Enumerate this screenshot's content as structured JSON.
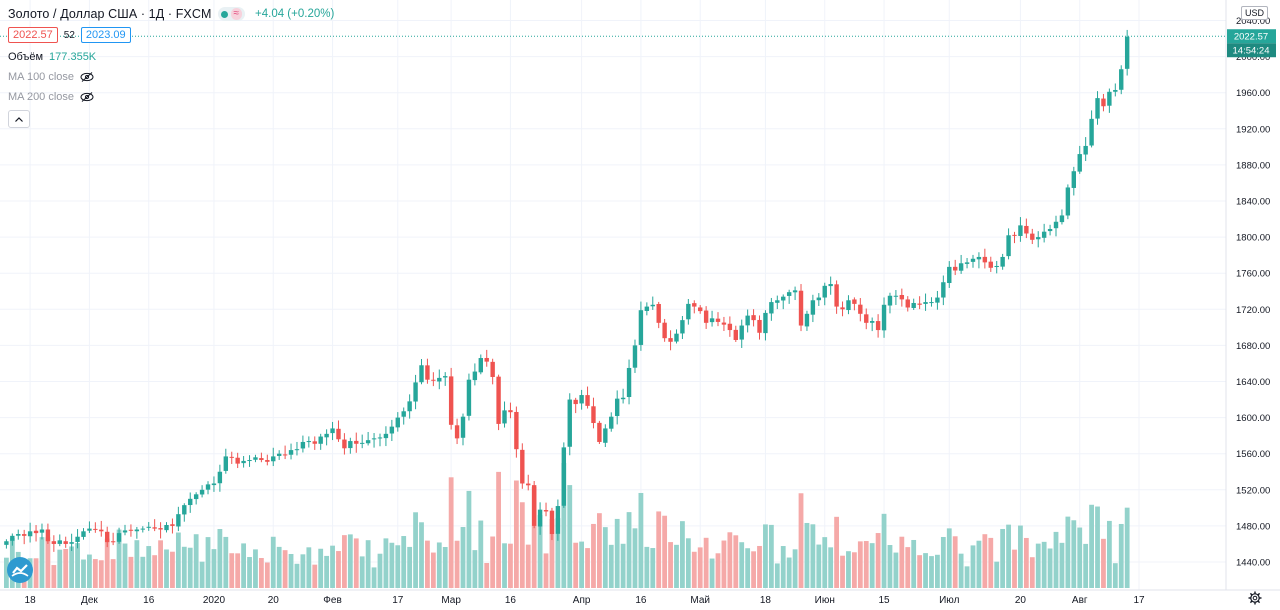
{
  "header": {
    "title": "Золото / Доллар США · 1Д · FXCM",
    "status_icon": "market-open-dot",
    "wave_icon": "≈",
    "change": "+4.04 (+0.20%)",
    "bid": "2022.57",
    "spread": "52",
    "ask": "2023.09"
  },
  "indicators": [
    {
      "name": "Объём",
      "value": "177.355K",
      "visible": true
    },
    {
      "name": "MA 100 close",
      "value": "",
      "visible": false
    },
    {
      "name": "MA 200 close",
      "value": "",
      "visible": false
    }
  ],
  "collapse_icon": "chevron-up-icon",
  "currency": "USD",
  "price_label": {
    "value": "2022.57",
    "countdown": "14:54:24"
  },
  "colors": {
    "up": "#26a69a",
    "down": "#ef5350",
    "vol_up": "#93d2cb",
    "vol_down": "#f5a9a8",
    "grid": "#f0f3fa",
    "axis": "#787b86"
  },
  "chart_data": {
    "type": "candlestick",
    "y_ticks": [
      1440,
      1480,
      1520,
      1560,
      1600,
      1640,
      1680,
      1720,
      1760,
      1800,
      1840,
      1880,
      1920,
      1960,
      2000,
      2040
    ],
    "y_tick_labels": [
      "1440.00",
      "1480.00",
      "1520.00",
      "1560.00",
      "1600.00",
      "1640.00",
      "1680.00",
      "1720.00",
      "1760.00",
      "1800.00",
      "1840.00",
      "1880.00",
      "1920.00",
      "1960.00",
      "2000.00",
      "2040.00"
    ],
    "ylim": [
      1425,
      2048
    ],
    "x_ticks": [
      {
        "label": "18",
        "index": 4
      },
      {
        "label": "Дек",
        "index": 14
      },
      {
        "label": "16",
        "index": 24
      },
      {
        "label": "2020",
        "index": 35
      },
      {
        "label": "20",
        "index": 45
      },
      {
        "label": "Фев",
        "index": 55
      },
      {
        "label": "17",
        "index": 66
      },
      {
        "label": "Мар",
        "index": 75
      },
      {
        "label": "16",
        "index": 85
      },
      {
        "label": "Апр",
        "index": 97
      },
      {
        "label": "16",
        "index": 107
      },
      {
        "label": "Май",
        "index": 117
      },
      {
        "label": "18",
        "index": 128
      },
      {
        "label": "Июн",
        "index": 138
      },
      {
        "label": "15",
        "index": 148
      },
      {
        "label": "Июл",
        "index": 159
      },
      {
        "label": "20",
        "index": 171
      },
      {
        "label": "Авг",
        "index": 181
      },
      {
        "label": "17",
        "index": 191
      }
    ],
    "current_price": 2022.57,
    "close": [
      1463,
      1469,
      1471,
      1469,
      1474,
      1472,
      1476,
      1463,
      1460,
      1464,
      1460,
      1462,
      1468,
      1474,
      1477,
      1476,
      1474,
      1462,
      1462,
      1472,
      1475,
      1475,
      1476,
      1477,
      1479,
      1477,
      1476,
      1481,
      1480,
      1493,
      1503,
      1510,
      1515,
      1520,
      1526,
      1527,
      1540,
      1557,
      1556,
      1549,
      1552,
      1553,
      1556,
      1553,
      1551,
      1557,
      1560,
      1559,
      1564,
      1565,
      1573,
      1574,
      1571,
      1579,
      1582,
      1588,
      1576,
      1566,
      1574,
      1571,
      1572,
      1575,
      1577,
      1578,
      1582,
      1590,
      1600,
      1607,
      1618,
      1639,
      1658,
      1642,
      1641,
      1644,
      1646,
      1592,
      1577,
      1601,
      1642,
      1651,
      1666,
      1662,
      1645,
      1593,
      1608,
      1606,
      1565,
      1527,
      1525,
      1480,
      1498,
      1496,
      1471,
      1502,
      1567,
      1620,
      1615,
      1625,
      1613,
      1594,
      1573,
      1588,
      1601,
      1621,
      1622,
      1655,
      1680,
      1719,
      1723,
      1725,
      1705,
      1688,
      1684,
      1693,
      1708,
      1726,
      1723,
      1718,
      1705,
      1710,
      1706,
      1703,
      1697,
      1686,
      1702,
      1713,
      1708,
      1694,
      1716,
      1728,
      1730,
      1734,
      1739,
      1741,
      1702,
      1715,
      1730,
      1733,
      1746,
      1748,
      1723,
      1720,
      1730,
      1726,
      1715,
      1705,
      1707,
      1697,
      1725,
      1735,
      1735,
      1731,
      1722,
      1727,
      1725,
      1728,
      1728,
      1733,
      1750,
      1767,
      1763,
      1771,
      1772,
      1776,
      1778,
      1772,
      1766,
      1768,
      1778,
      1802,
      1802,
      1813,
      1804,
      1797,
      1800,
      1806,
      1809,
      1817,
      1824,
      1855,
      1873,
      1892,
      1901,
      1931,
      1954,
      1945,
      1961,
      1963,
      1986,
      2022
    ]
  }
}
